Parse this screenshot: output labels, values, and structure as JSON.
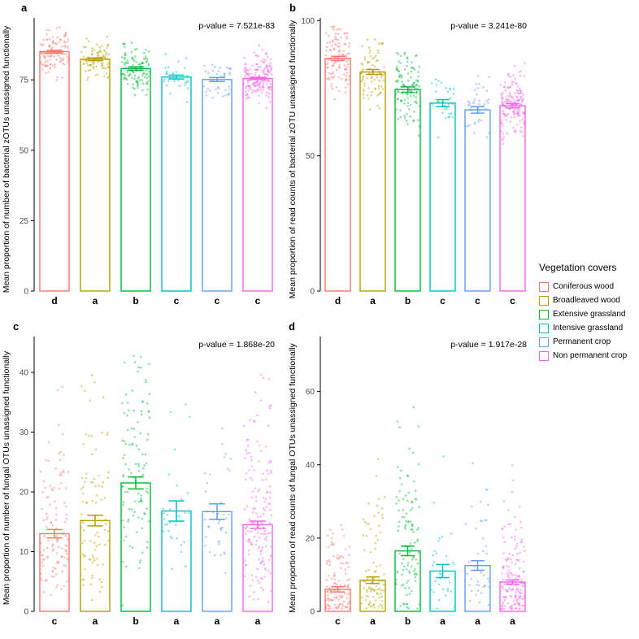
{
  "legend": {
    "title": "Vegetation covers",
    "position": "right",
    "items": [
      {
        "label": "Coniferous wood",
        "color": "#F8766D"
      },
      {
        "label": "Broadleaved wood",
        "color": "#B79F00"
      },
      {
        "label": "Extensive grassland",
        "color": "#00BA38"
      },
      {
        "label": "Intensive grassland",
        "color": "#00BFC4"
      },
      {
        "label": "Permanent crop",
        "color": "#619CFF"
      },
      {
        "label": "Non permanent crop",
        "color": "#F564E5"
      }
    ]
  },
  "chart_data": [
    {
      "type": "bar",
      "panel": "a",
      "ylabel": "Mean proportion of number of bacterial zOTUs unassigned functionally",
      "p_value": "p-value = 7.521e-83",
      "categories": [
        "Coniferous wood",
        "Broadleaved wood",
        "Extensive grassland",
        "Intensive grassland",
        "Permanent crop",
        "Non permanent crop"
      ],
      "values": [
        85,
        82.3,
        79,
        76,
        75.1,
        75.5
      ],
      "errors": [
        0.5,
        0.5,
        0.6,
        0.7,
        0.7,
        0.4
      ],
      "letters": [
        "d",
        "a",
        "b",
        "c",
        "c",
        "c"
      ],
      "ylim": [
        0,
        97
      ],
      "yticks": [
        0,
        25,
        50,
        75
      ],
      "grid": false,
      "points": {
        "counts": [
          115,
          85,
          110,
          30,
          40,
          160
        ],
        "sd": [
          4,
          4,
          4,
          3.5,
          3.5,
          4
        ],
        "skew": 1.0
      }
    },
    {
      "type": "bar",
      "panel": "b",
      "ylabel": "Mean proportion of read counts of bacterial zOTU unassigned functionally",
      "p_value": "p-value = 3.241e-80",
      "categories": [
        "Coniferous wood",
        "Broadleaved wood",
        "Extensive grassland",
        "Intensive grassland",
        "Permanent crop",
        "Non permanent crop"
      ],
      "values": [
        86,
        81,
        74.5,
        69.5,
        67,
        68.5
      ],
      "errors": [
        0.8,
        0.9,
        1.0,
        1.3,
        1.2,
        0.8
      ],
      "letters": [
        "d",
        "a",
        "b",
        "c",
        "c",
        "c"
      ],
      "ylim": [
        0,
        101
      ],
      "yticks": [
        0,
        50,
        100
      ],
      "grid": false,
      "points": {
        "counts": [
          115,
          85,
          110,
          30,
          40,
          160
        ],
        "sd": [
          6,
          6,
          6.5,
          5,
          5,
          6
        ],
        "skew": 1.0
      }
    },
    {
      "type": "bar",
      "panel": "c",
      "ylabel": "Mean proportion of number of fungal OTUs unassigned functionally",
      "p_value": "p-value = 1.868e-20",
      "categories": [
        "Coniferous wood",
        "Broadleaved wood",
        "Extensive grassland",
        "Intensive grassland",
        "Permanent crop",
        "Non permanent crop"
      ],
      "values": [
        13,
        15.2,
        21.5,
        16.8,
        16.7,
        14.5
      ],
      "errors": [
        0.7,
        0.9,
        1.0,
        1.7,
        1.3,
        0.6
      ],
      "letters": [
        "c",
        "a",
        "b",
        "a",
        "a",
        "a"
      ],
      "ylim": [
        0,
        46
      ],
      "yticks": [
        0,
        10,
        20,
        30,
        40
      ],
      "grid": false,
      "points": {
        "counts": [
          115,
          85,
          110,
          30,
          40,
          160
        ],
        "sd": [
          6,
          7,
          7.5,
          5,
          5,
          6.5
        ],
        "skew": 1.5
      }
    },
    {
      "type": "bar",
      "panel": "d",
      "ylabel": "Mean proportion of read counts of fungal OTUs unassigned functionally",
      "p_value": "p-value = 1.917e-28",
      "categories": [
        "Coniferous wood",
        "Broadleaved wood",
        "Extensive grassland",
        "Intensive grassland",
        "Permanent crop",
        "Non permanent crop"
      ],
      "values": [
        6,
        8.5,
        16.5,
        11,
        12.5,
        8
      ],
      "errors": [
        0.7,
        0.9,
        1.3,
        1.8,
        1.3,
        0.6
      ],
      "letters": [
        "c",
        "a",
        "b",
        "a",
        "a",
        "a"
      ],
      "ylim": [
        0,
        75
      ],
      "yticks": [
        0,
        20,
        40,
        60
      ],
      "grid": false,
      "points": {
        "counts": [
          115,
          85,
          110,
          30,
          40,
          160
        ],
        "sd": [
          4.5,
          5.5,
          9,
          5.5,
          5.5,
          5
        ],
        "skew": 2.0
      }
    }
  ]
}
